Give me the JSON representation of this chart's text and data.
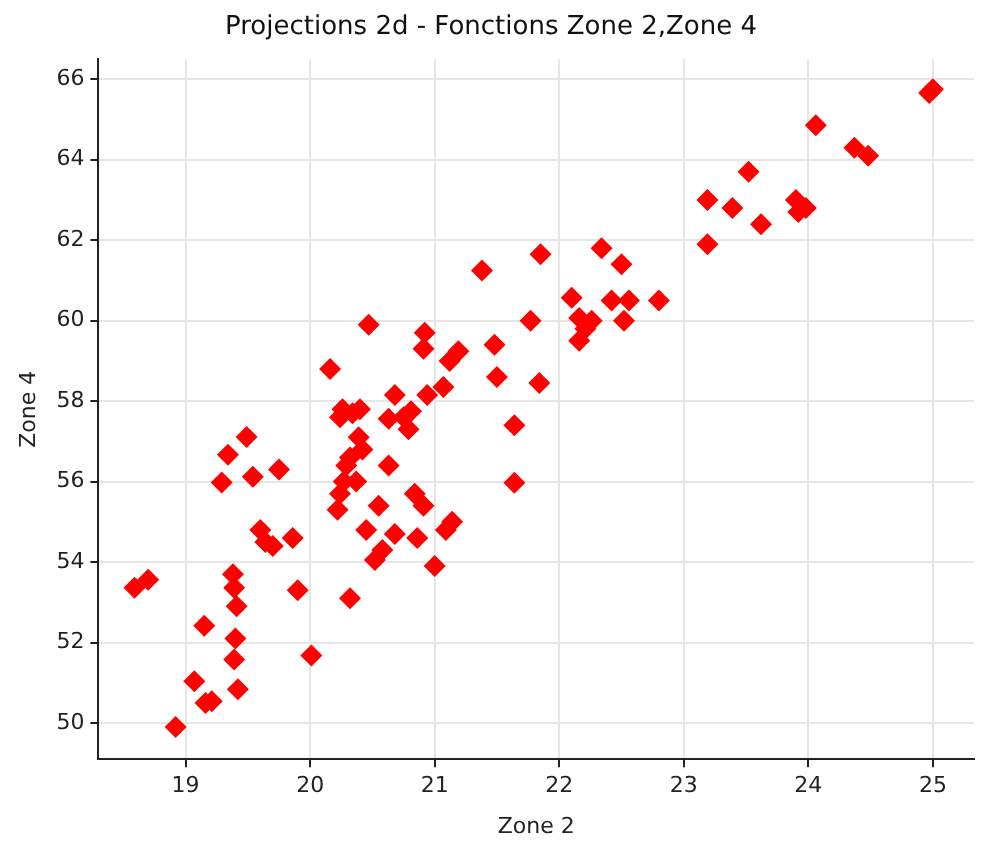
{
  "chart_data": {
    "type": "scatter",
    "title": "Projections 2d - Fonctions Zone 2,Zone 4",
    "xlabel": "Zone 2",
    "ylabel": "Zone 4",
    "xlim": [
      18.3,
      25.33
    ],
    "ylim": [
      49.1,
      66.5
    ],
    "xticks": [
      19,
      20,
      21,
      22,
      23,
      24,
      25
    ],
    "yticks": [
      50,
      52,
      54,
      56,
      58,
      60,
      62,
      64,
      66
    ],
    "grid": true,
    "marker": "diamond",
    "series": [
      {
        "color": "#ff0000",
        "x": [
          18.59,
          18.7,
          18.92,
          19.07,
          19.15,
          19.16,
          19.21,
          19.29,
          19.34,
          19.39,
          19.38,
          19.41,
          19.39,
          19.4,
          19.42,
          19.49,
          19.54,
          19.6,
          19.64,
          19.7,
          19.75,
          19.86,
          19.9,
          20.01,
          20.16,
          20.24,
          20.26,
          20.32,
          20.42,
          20.4,
          20.45,
          20.47,
          20.52,
          20.55,
          20.58,
          20.63,
          20.63,
          20.68,
          20.68,
          20.75,
          20.79,
          20.81,
          20.84,
          20.86,
          20.91,
          20.91,
          20.92,
          20.94,
          21.0,
          21.07,
          21.09,
          21.14,
          21.12,
          21.19,
          21.38,
          21.48,
          21.5,
          21.64,
          21.64,
          21.77,
          21.84,
          21.85,
          22.1,
          22.16,
          22.16,
          22.21,
          22.26,
          22.34,
          22.42,
          22.5,
          22.52,
          22.56,
          22.8,
          23.19,
          23.19,
          23.39,
          23.52,
          23.62,
          23.9,
          23.92,
          23.98,
          24.06,
          24.37,
          24.48,
          24.97,
          25.0,
          20.22,
          20.24,
          20.27,
          20.29,
          20.32,
          20.37,
          20.39,
          20.34
        ],
        "values": [
          53.36,
          53.56,
          49.9,
          51.04,
          52.42,
          50.5,
          50.54,
          55.98,
          56.67,
          53.36,
          53.7,
          52.9,
          51.58,
          52.1,
          50.84,
          57.11,
          56.12,
          54.8,
          54.5,
          54.4,
          56.3,
          54.6,
          53.3,
          51.68,
          58.8,
          57.6,
          57.8,
          53.1,
          56.8,
          57.8,
          54.8,
          59.9,
          54.05,
          55.4,
          54.3,
          56.4,
          57.56,
          58.15,
          54.7,
          57.6,
          57.3,
          57.75,
          55.7,
          54.6,
          59.3,
          55.4,
          59.7,
          58.15,
          53.9,
          58.35,
          54.8,
          55.0,
          59.0,
          59.24,
          61.25,
          59.4,
          58.6,
          57.4,
          55.97,
          60.0,
          58.45,
          61.65,
          60.57,
          60.07,
          59.5,
          59.8,
          60.0,
          61.8,
          60.5,
          61.4,
          60.0,
          60.5,
          60.5,
          63.0,
          61.9,
          62.8,
          63.7,
          62.4,
          63.0,
          62.7,
          62.8,
          64.86,
          64.3,
          64.1,
          65.66,
          65.75,
          55.3,
          55.7,
          56.0,
          56.4,
          56.6,
          56.0,
          57.1,
          57.7
        ]
      }
    ]
  }
}
